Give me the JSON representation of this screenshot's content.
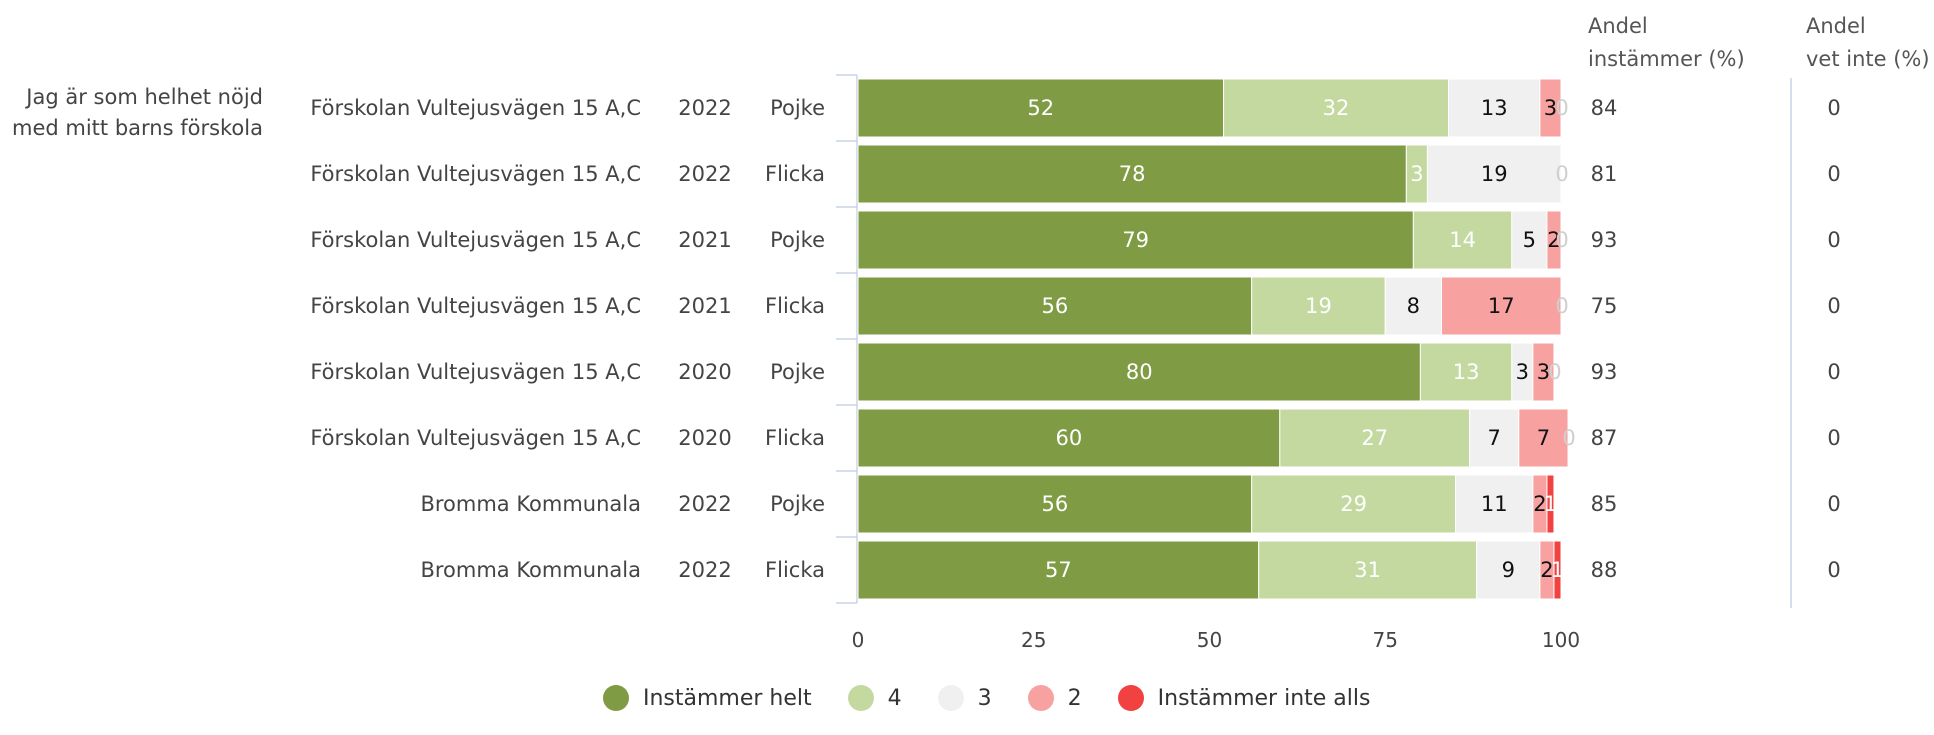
{
  "chart_data": {
    "type": "bar",
    "orientation": "horizontal",
    "stacked": true,
    "question": "Jag är som helhet nöjd med mitt barns förskola",
    "question_lines": [
      "Jag är som helhet nöjd",
      "med mitt barns förskola"
    ],
    "xlim": [
      0,
      100
    ],
    "xticks": [
      0,
      25,
      50,
      75,
      100
    ],
    "grid": false,
    "legend_position": "bottom",
    "rows": [
      {
        "unit": "Förskolan Vultejusvägen 15 A,C",
        "year": "2022",
        "gender": "Pojke",
        "values": [
          52,
          32,
          13,
          3,
          0
        ],
        "labels": [
          "52",
          "32",
          "13",
          "3",
          "0"
        ],
        "andel_instammer": "84",
        "andel_vet_inte": "0"
      },
      {
        "unit": "Förskolan Vultejusvägen 15 A,C",
        "year": "2022",
        "gender": "Flicka",
        "values": [
          78,
          3,
          19,
          0,
          0
        ],
        "labels": [
          "78",
          "3",
          "19",
          "0",
          ""
        ],
        "andel_instammer": "81",
        "andel_vet_inte": "0"
      },
      {
        "unit": "Förskolan Vultejusvägen 15 A,C",
        "year": "2021",
        "gender": "Pojke",
        "values": [
          79,
          14,
          5,
          2,
          0
        ],
        "labels": [
          "79",
          "14",
          "5",
          "2",
          "0"
        ],
        "andel_instammer": "93",
        "andel_vet_inte": "0"
      },
      {
        "unit": "Förskolan Vultejusvägen 15 A,C",
        "year": "2021",
        "gender": "Flicka",
        "values": [
          56,
          19,
          8,
          17,
          0
        ],
        "labels": [
          "56",
          "19",
          "8",
          "17",
          "0"
        ],
        "andel_instammer": "75",
        "andel_vet_inte": "0"
      },
      {
        "unit": "Förskolan Vultejusvägen 15 A,C",
        "year": "2020",
        "gender": "Pojke",
        "values": [
          80,
          13,
          3,
          3,
          0
        ],
        "labels": [
          "80",
          "13",
          "3",
          "3",
          "0"
        ],
        "andel_instammer": "93",
        "andel_vet_inte": "0"
      },
      {
        "unit": "Förskolan Vultejusvägen 15 A,C",
        "year": "2020",
        "gender": "Flicka",
        "values": [
          60,
          27,
          7,
          7,
          0
        ],
        "labels": [
          "60",
          "27",
          "7",
          "7",
          "0"
        ],
        "andel_instammer": "87",
        "andel_vet_inte": "0"
      },
      {
        "unit": "Bromma Kommunala",
        "year": "2022",
        "gender": "Pojke",
        "values": [
          56,
          29,
          11,
          2,
          1
        ],
        "labels": [
          "56",
          "29",
          "11",
          "2",
          "1"
        ],
        "andel_instammer": "85",
        "andel_vet_inte": "0"
      },
      {
        "unit": "Bromma Kommunala",
        "year": "2022",
        "gender": "Flicka",
        "values": [
          57,
          31,
          9,
          2,
          1
        ],
        "labels": [
          "57",
          "31",
          "9",
          "2",
          "1"
        ],
        "andel_instammer": "88",
        "andel_vet_inte": "0"
      }
    ],
    "series": [
      {
        "name": "Instämmer helt",
        "color": "#7f9c44",
        "label_color": "#ffffff"
      },
      {
        "name": "4",
        "color": "#c4d9a0",
        "label_color": "#ffffff"
      },
      {
        "name": "3",
        "color": "#f0f0f0",
        "label_color": "#111111"
      },
      {
        "name": "2",
        "color": "#f7a1a1",
        "label_color": "#111111"
      },
      {
        "name": "Instämmer inte alls",
        "color": "#f24141",
        "label_color": "#ffffff"
      }
    ],
    "columns": {
      "andel_instammer_header": [
        "Andel",
        "instämmer (%)"
      ],
      "andel_vet_inte_header": [
        "Andel",
        "vet inte (%)"
      ]
    }
  }
}
